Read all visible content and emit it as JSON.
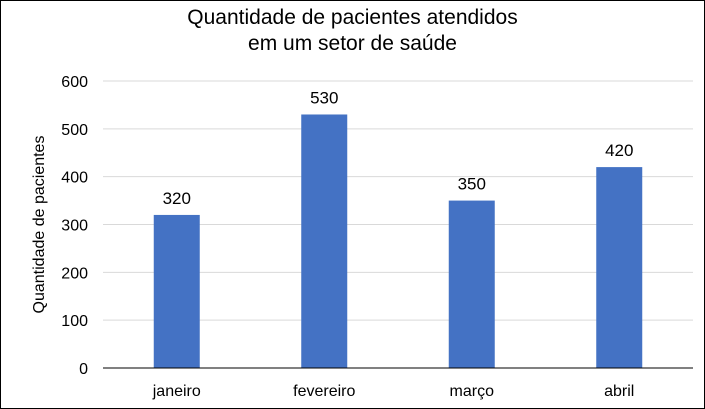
{
  "chart_data": {
    "type": "bar",
    "title": [
      "Quantidade de pacientes atendidos",
      "em um setor de saúde"
    ],
    "xlabel": "",
    "ylabel": "Quantidade de pacientes",
    "categories": [
      "janeiro",
      "fevereiro",
      "março",
      "abril"
    ],
    "values": [
      320,
      530,
      350,
      420
    ],
    "ylim": [
      0,
      600
    ],
    "yticks": [
      "0",
      "100",
      "200",
      "300",
      "400",
      "500",
      "600"
    ],
    "grid": true,
    "legend": "none",
    "bar_color": "#4472C4",
    "grid_color": "#D9D9D9"
  }
}
